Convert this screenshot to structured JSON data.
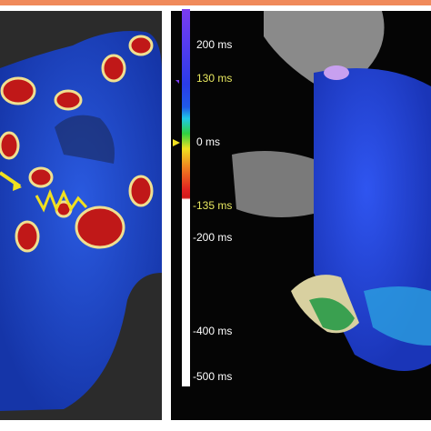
{
  "scale_labels": [
    "200 ms",
    "130 ms",
    "0 ms",
    "-135 ms",
    "-200 ms",
    "-400 ms",
    "-500 ms"
  ]
}
